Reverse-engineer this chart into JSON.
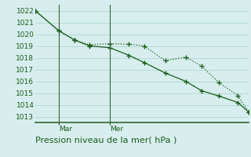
{
  "xlabel": "Pression niveau de la mer( hPa )",
  "background_color": "#d8eeee",
  "grid_color": "#b0d8d0",
  "line_color": "#1a5c1a",
  "ylim": [
    1012.5,
    1022.5
  ],
  "yticks": [
    1013,
    1014,
    1015,
    1016,
    1017,
    1018,
    1019,
    1020,
    1021,
    1022
  ],
  "xlim": [
    0,
    10
  ],
  "vline_x": [
    1.1,
    3.5
  ],
  "vline_labels": [
    "Mar",
    "Mer"
  ],
  "series1_x": [
    0.0,
    1.1,
    1.85,
    2.55,
    3.5,
    4.4,
    5.1,
    6.1,
    7.05,
    7.8,
    8.6,
    9.5,
    10.0
  ],
  "series1_y": [
    1022.0,
    1020.3,
    1019.5,
    1019.1,
    1019.2,
    1019.15,
    1019.0,
    1017.75,
    1018.05,
    1017.3,
    1015.9,
    1014.8,
    1013.4
  ],
  "series2_x": [
    0.0,
    1.1,
    1.85,
    2.55,
    3.5,
    4.4,
    5.1,
    6.1,
    7.05,
    7.8,
    8.6,
    9.5,
    10.0
  ],
  "series2_y": [
    1022.0,
    1020.3,
    1019.5,
    1019.0,
    1018.85,
    1018.2,
    1017.6,
    1016.7,
    1016.0,
    1015.2,
    1014.75,
    1014.2,
    1013.4
  ],
  "xlabel_fontsize": 8,
  "tick_fontsize": 6.5,
  "vline_color": "#336633",
  "axis_color": "#336633"
}
